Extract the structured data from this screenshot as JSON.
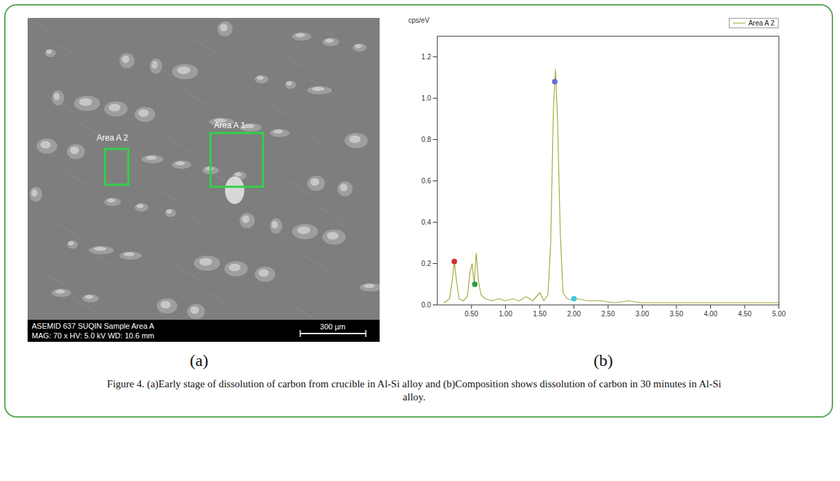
{
  "micrograph": {
    "areas": [
      {
        "label": "Area A 2"
      },
      {
        "label": "Area A 1"
      }
    ],
    "info_lines": [
      "ASEMID 637 SUQIN Sample Area A",
      "MAG: 70 x HV: 5.0 kV WD: 10.6 mm"
    ],
    "scale_bar": "300 µm"
  },
  "panel_labels": [
    "(a)",
    "(b)"
  ],
  "caption": "Figure 4. (a)Early stage of dissolution of carbon from crucible in Al-Si alloy and (b)Composition shows dissolution of carbon in 30 minutes in Al-Si alloy.",
  "chart_data": {
    "type": "line",
    "y_label": "cps/eV",
    "legend": "top-right",
    "grid": false,
    "xlim": [
      0,
      5
    ],
    "xticks": [
      {
        "value": 0.5,
        "label": "0.50"
      },
      {
        "value": 1,
        "label": "1.00"
      },
      {
        "value": 1.5,
        "label": "1.50"
      },
      {
        "value": 2,
        "label": "2.00"
      },
      {
        "value": 2.5,
        "label": "2.50"
      },
      {
        "value": 3,
        "label": "3.00"
      },
      {
        "value": 3.5,
        "label": "3.50"
      },
      {
        "value": 4,
        "label": "4.00"
      },
      {
        "value": 4.5,
        "label": "4.50"
      },
      {
        "value": 5,
        "label": "5.00"
      }
    ],
    "ylim": [
      0,
      1.3
    ],
    "yticks": [
      {
        "value": 0,
        "label": "0.0"
      },
      {
        "value": 0.2,
        "label": "0.2"
      },
      {
        "value": 0.4,
        "label": "0.4"
      },
      {
        "value": 0.6,
        "label": "0.6"
      },
      {
        "value": 0.8,
        "label": "0.8"
      },
      {
        "value": 1,
        "label": "1.0"
      },
      {
        "value": 1.2,
        "label": "1.2"
      }
    ],
    "series": [
      {
        "name": "Area A 2",
        "type": "line",
        "color": "#a8a83c",
        "line_style": "solid",
        "x": [
          0.1,
          0.18,
          0.22,
          0.25,
          0.28,
          0.32,
          0.38,
          0.44,
          0.48,
          0.51,
          0.54,
          0.57,
          0.6,
          0.64,
          0.7,
          0.8,
          0.9,
          1.0,
          1.1,
          1.2,
          1.3,
          1.4,
          1.5,
          1.56,
          1.62,
          1.66,
          1.7,
          1.73,
          1.76,
          1.8,
          1.84,
          1.9,
          2.0,
          2.05,
          2.2,
          2.4,
          2.6,
          2.8,
          3.0,
          3.5,
          4.0,
          4.5,
          5.0
        ],
        "values": [
          0.01,
          0.03,
          0.12,
          0.21,
          0.12,
          0.03,
          0.02,
          0.04,
          0.16,
          0.2,
          0.1,
          0.25,
          0.12,
          0.05,
          0.03,
          0.02,
          0.03,
          0.02,
          0.03,
          0.02,
          0.04,
          0.02,
          0.06,
          0.02,
          0.05,
          0.3,
          0.95,
          1.14,
          0.9,
          0.35,
          0.06,
          0.03,
          0.02,
          0.03,
          0.02,
          0.02,
          0.01,
          0.02,
          0.01,
          0.01,
          0.01,
          0.01,
          0.01
        ]
      },
      {
        "type": "scatter",
        "marker": "circle",
        "x": [
          0.25,
          0.55,
          1.72,
          2.0
        ],
        "values": [
          0.21,
          0.1,
          1.08,
          0.03
        ],
        "colors": [
          "#d03030",
          "#2a9a4a",
          "#6a6adf",
          "#40c8e0"
        ]
      }
    ]
  }
}
